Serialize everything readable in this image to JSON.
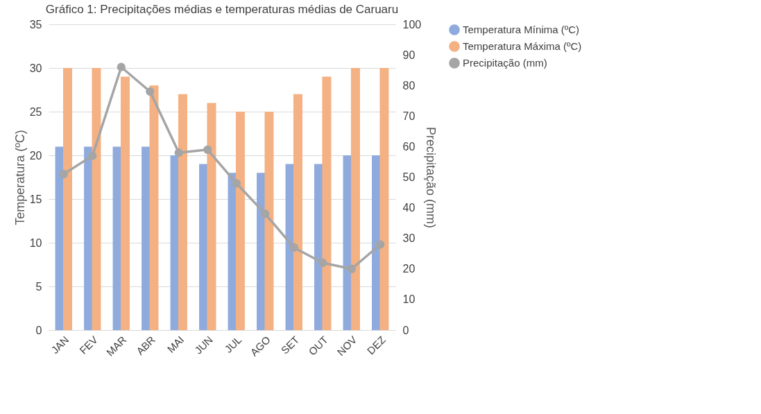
{
  "chart_data": {
    "type": "bar",
    "title": "Gráfico 1: Precipitações médias e temperaturas médias de Caruaru",
    "categories": [
      "JAN",
      "FEV",
      "MAR",
      "ABR",
      "MAI",
      "JUN",
      "JUL",
      "AGO",
      "SET",
      "OUT",
      "NOV",
      "DEZ"
    ],
    "ylabel": "Temperatura (ºC)",
    "y2label": "Precipitação (mm)",
    "ylim": [
      0,
      35
    ],
    "yticks": [
      0,
      5,
      10,
      15,
      20,
      25,
      30,
      35
    ],
    "y2lim": [
      0,
      100
    ],
    "y2ticks": [
      0,
      10,
      20,
      30,
      40,
      50,
      60,
      70,
      80,
      90,
      100
    ],
    "grid": "y",
    "legend": "right",
    "marker": "circle",
    "series": [
      {
        "name": "Temperatura Mínima (ºC)",
        "color": "#8faadc",
        "values": [
          21,
          21,
          21,
          21,
          20,
          19,
          18,
          18,
          19,
          19,
          20,
          20
        ]
      },
      {
        "name": "Temperatura Máxima (ºC)",
        "color": "#f4b183",
        "values": [
          30,
          30,
          29,
          28,
          27,
          26,
          25,
          25,
          27,
          29,
          30,
          30
        ]
      },
      {
        "name": "Precipitação (mm)",
        "type": "line",
        "axis": "y2",
        "color": "#a5a5a5",
        "values": [
          51,
          57,
          86,
          78,
          58,
          59,
          48,
          38,
          27,
          22,
          20,
          28
        ]
      }
    ]
  }
}
